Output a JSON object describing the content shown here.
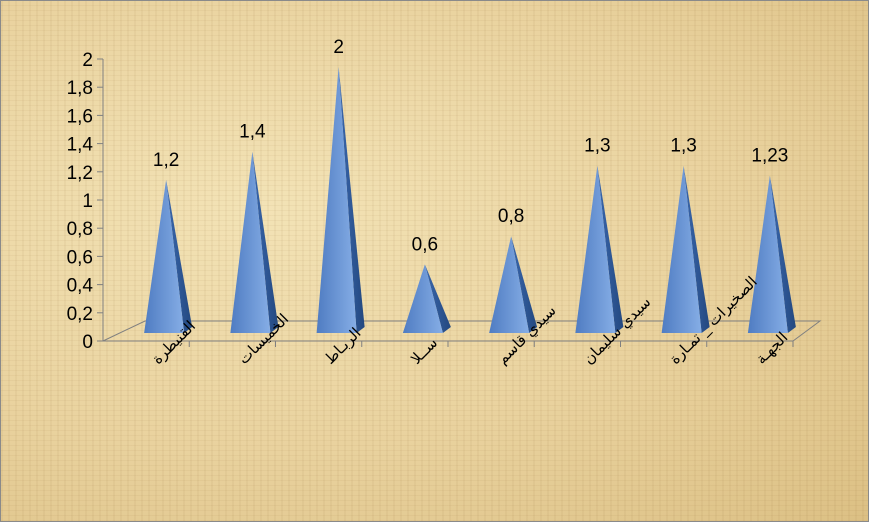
{
  "chart_data": {
    "type": "bar",
    "bar_shape": "pyramid-3d",
    "categories": [
      "القنيطرة",
      "الخميسات",
      "الربـاط",
      "ســلا",
      "سيدي قاسم",
      "سيدي سليمان",
      "الصخيرات _ تمـارة",
      "الجهـة"
    ],
    "values": [
      1.2,
      1.4,
      2,
      0.6,
      0.8,
      1.3,
      1.3,
      1.23
    ],
    "data_labels": [
      "1,2",
      "1,4",
      "2",
      "0,6",
      "0,8",
      "1,3",
      "1,3",
      "1,23"
    ],
    "y_ticks": [
      "0",
      "0,2",
      "0,4",
      "0,6",
      "0,8",
      "1",
      "1,2",
      "1,4",
      "1,6",
      "1,8",
      "2"
    ],
    "ylim": [
      0,
      2
    ],
    "title": "",
    "xlabel": "",
    "ylabel": "",
    "grid": false,
    "legend": "none",
    "colors": {
      "bar_light": "#6f98d6",
      "bar_dark": "#2f5a9e",
      "axis": "#808080"
    }
  }
}
